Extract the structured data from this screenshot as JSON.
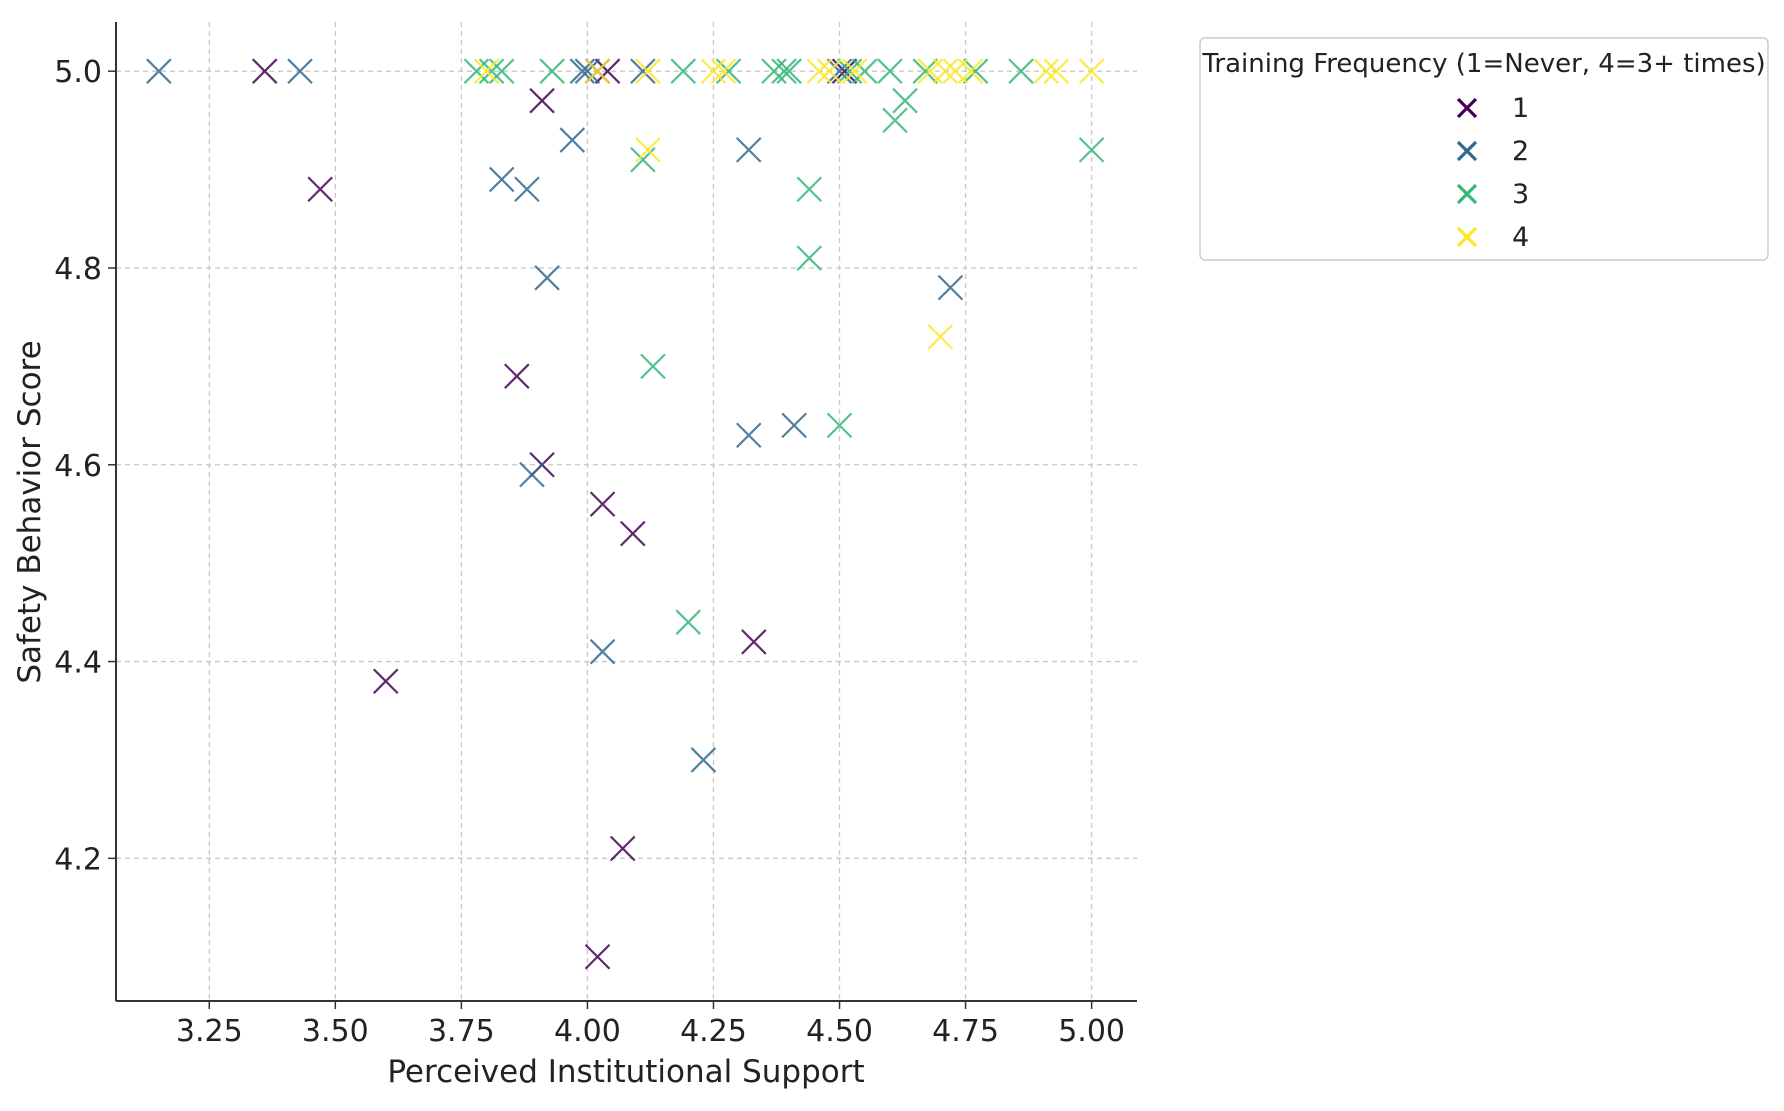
{
  "chart_data": {
    "type": "scatter",
    "title": "",
    "xlabel": "Perceived Institutional Support",
    "ylabel": "Safety Behavior Score",
    "xlim": [
      3.065,
      5.09
    ],
    "ylim": [
      4.055,
      5.05
    ],
    "xticks": [
      3.25,
      3.5,
      3.75,
      4.0,
      4.25,
      4.5,
      4.75,
      5.0
    ],
    "xtick_labels": [
      "3.25",
      "3.50",
      "3.75",
      "4.00",
      "4.25",
      "4.50",
      "4.75",
      "5.00"
    ],
    "yticks": [
      4.2,
      4.4,
      4.6,
      4.8,
      5.0
    ],
    "ytick_labels": [
      "4.2",
      "4.4",
      "4.6",
      "4.8",
      "5.0"
    ],
    "grid": true,
    "marker": "x",
    "legend": {
      "title": "Training Frequency (1=Never, 4=3+ times)",
      "position": "outside-top-right"
    },
    "series": [
      {
        "name": "1",
        "color": "#440154",
        "points": [
          [
            3.36,
            5.0
          ],
          [
            3.47,
            4.88
          ],
          [
            3.6,
            4.38
          ],
          [
            3.86,
            4.69
          ],
          [
            3.91,
            4.97
          ],
          [
            3.91,
            4.6
          ],
          [
            4.02,
            5.0
          ],
          [
            4.04,
            5.0
          ],
          [
            4.03,
            4.56
          ],
          [
            4.09,
            4.53
          ],
          [
            4.07,
            4.21
          ],
          [
            4.02,
            4.1
          ],
          [
            4.33,
            4.42
          ],
          [
            4.51,
            5.0
          ]
        ]
      },
      {
        "name": "2",
        "color": "#31688e",
        "points": [
          [
            3.15,
            5.0
          ],
          [
            3.43,
            5.0
          ],
          [
            3.83,
            4.89
          ],
          [
            3.88,
            4.88
          ],
          [
            3.89,
            4.59
          ],
          [
            3.92,
            4.79
          ],
          [
            3.97,
            4.93
          ],
          [
            3.99,
            5.0
          ],
          [
            4.0,
            5.0
          ],
          [
            4.03,
            4.41
          ],
          [
            4.11,
            5.0
          ],
          [
            4.23,
            4.3
          ],
          [
            4.32,
            4.92
          ],
          [
            4.32,
            4.63
          ],
          [
            4.41,
            4.64
          ],
          [
            4.5,
            5.0
          ],
          [
            4.72,
            4.78
          ]
        ]
      },
      {
        "name": "3",
        "color": "#35b779",
        "points": [
          [
            3.78,
            5.0
          ],
          [
            3.81,
            5.0
          ],
          [
            3.83,
            5.0
          ],
          [
            3.93,
            5.0
          ],
          [
            4.11,
            4.91
          ],
          [
            4.13,
            4.7
          ],
          [
            4.2,
            4.44
          ],
          [
            4.19,
            5.0
          ],
          [
            4.28,
            5.0
          ],
          [
            4.37,
            5.0
          ],
          [
            4.39,
            5.0
          ],
          [
            4.4,
            5.0
          ],
          [
            4.44,
            4.88
          ],
          [
            4.44,
            4.81
          ],
          [
            4.5,
            4.64
          ],
          [
            4.52,
            5.0
          ],
          [
            4.55,
            5.0
          ],
          [
            4.6,
            5.0
          ],
          [
            4.61,
            4.95
          ],
          [
            4.63,
            4.97
          ],
          [
            4.67,
            5.0
          ],
          [
            4.77,
            5.0
          ],
          [
            4.86,
            5.0
          ],
          [
            5.0,
            4.92
          ]
        ]
      },
      {
        "name": "4",
        "color": "#fde725",
        "points": [
          [
            3.8,
            5.0
          ],
          [
            4.02,
            5.0
          ],
          [
            4.12,
            5.0
          ],
          [
            4.12,
            4.92
          ],
          [
            4.25,
            5.0
          ],
          [
            4.27,
            5.0
          ],
          [
            4.46,
            5.0
          ],
          [
            4.48,
            5.0
          ],
          [
            4.53,
            5.0
          ],
          [
            4.68,
            5.0
          ],
          [
            4.7,
            4.73
          ],
          [
            4.71,
            5.0
          ],
          [
            4.73,
            5.0
          ],
          [
            4.76,
            5.0
          ],
          [
            4.91,
            5.0
          ],
          [
            4.93,
            5.0
          ],
          [
            5.0,
            5.0
          ]
        ]
      }
    ]
  }
}
